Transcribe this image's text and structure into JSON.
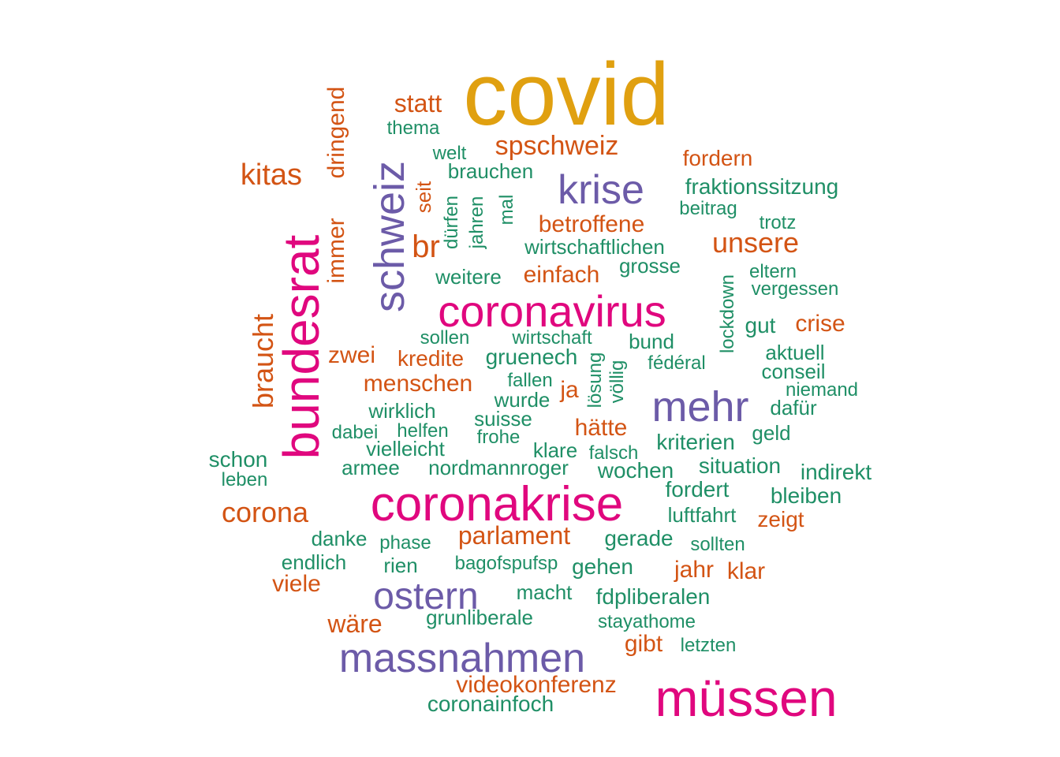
{
  "colors": {
    "gold": "#e0a010",
    "magenta": "#e0077e",
    "purple": "#6c5ba8",
    "orange": "#d35414",
    "teal": "#1f8f66"
  },
  "words": [
    {
      "text": "covid",
      "color": "gold"
    },
    {
      "text": "müssen",
      "color": "magenta"
    },
    {
      "text": "coronakrise",
      "color": "magenta"
    },
    {
      "text": "coronavirus",
      "color": "magenta"
    },
    {
      "text": "bundesrat",
      "color": "magenta"
    },
    {
      "text": "schweiz",
      "color": "purple"
    },
    {
      "text": "massnahmen",
      "color": "purple"
    },
    {
      "text": "mehr",
      "color": "purple"
    },
    {
      "text": "ostern",
      "color": "purple"
    },
    {
      "text": "krise",
      "color": "purple"
    },
    {
      "text": "spschweiz",
      "color": "orange"
    },
    {
      "text": "kitas",
      "color": "orange"
    },
    {
      "text": "statt",
      "color": "orange"
    },
    {
      "text": "dringend",
      "color": "orange"
    },
    {
      "text": "immer",
      "color": "orange"
    },
    {
      "text": "braucht",
      "color": "orange"
    },
    {
      "text": "br",
      "color": "orange"
    },
    {
      "text": "seit",
      "color": "orange"
    },
    {
      "text": "corona",
      "color": "orange"
    },
    {
      "text": "betroffene",
      "color": "orange"
    },
    {
      "text": "unsere",
      "color": "orange"
    },
    {
      "text": "fordern",
      "color": "orange"
    },
    {
      "text": "einfach",
      "color": "orange"
    },
    {
      "text": "zwei",
      "color": "orange"
    },
    {
      "text": "kredite",
      "color": "orange"
    },
    {
      "text": "menschen",
      "color": "orange"
    },
    {
      "text": "crise",
      "color": "orange"
    },
    {
      "text": "ja",
      "color": "orange"
    },
    {
      "text": "hätte",
      "color": "orange"
    },
    {
      "text": "parlament",
      "color": "orange"
    },
    {
      "text": "zeigt",
      "color": "orange"
    },
    {
      "text": "jahr",
      "color": "orange"
    },
    {
      "text": "klar",
      "color": "orange"
    },
    {
      "text": "viele",
      "color": "orange"
    },
    {
      "text": "wäre",
      "color": "orange"
    },
    {
      "text": "gibt",
      "color": "orange"
    },
    {
      "text": "videokonferenz",
      "color": "orange"
    },
    {
      "text": "thema",
      "color": "teal"
    },
    {
      "text": "welt",
      "color": "teal"
    },
    {
      "text": "brauchen",
      "color": "teal"
    },
    {
      "text": "dürfen",
      "color": "teal"
    },
    {
      "text": "jahren",
      "color": "teal"
    },
    {
      "text": "mal",
      "color": "teal"
    },
    {
      "text": "fraktionssitzung",
      "color": "teal"
    },
    {
      "text": "beitrag",
      "color": "teal"
    },
    {
      "text": "trotz",
      "color": "teal"
    },
    {
      "text": "wirtschaftlichen",
      "color": "teal"
    },
    {
      "text": "weitere",
      "color": "teal"
    },
    {
      "text": "grosse",
      "color": "teal"
    },
    {
      "text": "eltern",
      "color": "teal"
    },
    {
      "text": "vergessen",
      "color": "teal"
    },
    {
      "text": "lockdown",
      "color": "teal"
    },
    {
      "text": "gut",
      "color": "teal"
    },
    {
      "text": "sollen",
      "color": "teal"
    },
    {
      "text": "wirtschaft",
      "color": "teal"
    },
    {
      "text": "bund",
      "color": "teal"
    },
    {
      "text": "aktuell",
      "color": "teal"
    },
    {
      "text": "gruenech",
      "color": "teal"
    },
    {
      "text": "lösung",
      "color": "teal"
    },
    {
      "text": "völlig",
      "color": "teal"
    },
    {
      "text": "fédéral",
      "color": "teal"
    },
    {
      "text": "conseil",
      "color": "teal"
    },
    {
      "text": "fallen",
      "color": "teal"
    },
    {
      "text": "niemand",
      "color": "teal"
    },
    {
      "text": "wurde",
      "color": "teal"
    },
    {
      "text": "dafür",
      "color": "teal"
    },
    {
      "text": "wirklich",
      "color": "teal"
    },
    {
      "text": "suisse",
      "color": "teal"
    },
    {
      "text": "dabei",
      "color": "teal"
    },
    {
      "text": "helfen",
      "color": "teal"
    },
    {
      "text": "frohe",
      "color": "teal"
    },
    {
      "text": "geld",
      "color": "teal"
    },
    {
      "text": "kriterien",
      "color": "teal"
    },
    {
      "text": "vielleicht",
      "color": "teal"
    },
    {
      "text": "klare",
      "color": "teal"
    },
    {
      "text": "falsch",
      "color": "teal"
    },
    {
      "text": "schon",
      "color": "teal"
    },
    {
      "text": "armee",
      "color": "teal"
    },
    {
      "text": "nordmannroger",
      "color": "teal"
    },
    {
      "text": "wochen",
      "color": "teal"
    },
    {
      "text": "situation",
      "color": "teal"
    },
    {
      "text": "indirekt",
      "color": "teal"
    },
    {
      "text": "leben",
      "color": "teal"
    },
    {
      "text": "fordert",
      "color": "teal"
    },
    {
      "text": "bleiben",
      "color": "teal"
    },
    {
      "text": "luftfahrt",
      "color": "teal"
    },
    {
      "text": "danke",
      "color": "teal"
    },
    {
      "text": "phase",
      "color": "teal"
    },
    {
      "text": "gerade",
      "color": "teal"
    },
    {
      "text": "sollten",
      "color": "teal"
    },
    {
      "text": "endlich",
      "color": "teal"
    },
    {
      "text": "rien",
      "color": "teal"
    },
    {
      "text": "bagofspufsp",
      "color": "teal"
    },
    {
      "text": "gehen",
      "color": "teal"
    },
    {
      "text": "macht",
      "color": "teal"
    },
    {
      "text": "fdpliberalen",
      "color": "teal"
    },
    {
      "text": "grunliberale",
      "color": "teal"
    },
    {
      "text": "stayathome",
      "color": "teal"
    },
    {
      "text": "letzten",
      "color": "teal"
    },
    {
      "text": "coronainfoch",
      "color": "teal"
    }
  ]
}
